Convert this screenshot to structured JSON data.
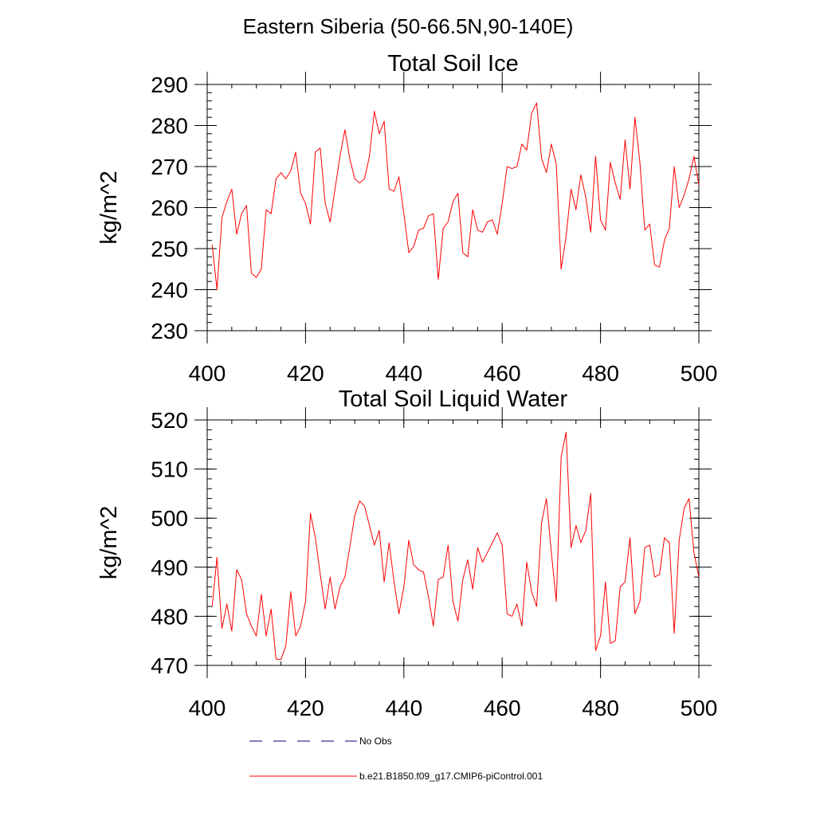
{
  "figure": {
    "suptitle": "Eastern Siberia (50-66.5N,90-140E)"
  },
  "chart_data": [
    {
      "type": "line",
      "title": "Total Soil Ice",
      "xlabel": "",
      "ylabel": "kg/m^2",
      "xlim": [
        400,
        500
      ],
      "ylim": [
        230,
        290
      ],
      "xticks": [
        400,
        420,
        440,
        460,
        480,
        500
      ],
      "yticks": [
        230,
        240,
        250,
        260,
        270,
        280,
        290
      ],
      "grid": false,
      "series": [
        {
          "name": "b.e21.B1850.f09_g17.CMIP6-piControl.001",
          "color": "#ff0000",
          "x": [
            401,
            402,
            403,
            404,
            405,
            406,
            407,
            408,
            409,
            410,
            411,
            412,
            413,
            414,
            415,
            416,
            417,
            418,
            419,
            420,
            421,
            422,
            423,
            424,
            425,
            426,
            427,
            428,
            429,
            430,
            431,
            432,
            433,
            434,
            435,
            436,
            437,
            438,
            439,
            440,
            441,
            442,
            443,
            444,
            445,
            446,
            447,
            448,
            449,
            450,
            451,
            452,
            453,
            454,
            455,
            456,
            457,
            458,
            459,
            460,
            461,
            462,
            463,
            464,
            465,
            466,
            467,
            468,
            469,
            470,
            471,
            472,
            473,
            474,
            475,
            476,
            477,
            478,
            479,
            480,
            481,
            482,
            483,
            484,
            485,
            486,
            487,
            488,
            489,
            490,
            491,
            492,
            493,
            494,
            495,
            496,
            497,
            498,
            499,
            500
          ],
          "y": [
            251,
            240,
            257.5,
            261.5,
            264.5,
            253.5,
            258.5,
            260.5,
            244,
            243,
            245,
            259.5,
            258.5,
            267,
            268.5,
            267,
            269,
            273.5,
            263.5,
            261,
            256,
            273.5,
            274.5,
            261,
            256.5,
            264.5,
            272.5,
            279,
            272,
            267,
            266,
            267,
            272.5,
            283.5,
            278,
            281,
            264.5,
            264,
            267.5,
            258.5,
            249,
            250.5,
            254.5,
            255,
            258,
            258.5,
            242.5,
            255,
            256.5,
            261.5,
            263.5,
            249,
            248,
            259.5,
            254.5,
            254,
            256.5,
            257,
            253.5,
            261,
            270,
            269.5,
            270,
            275.5,
            274,
            283,
            285.5,
            272,
            268.5,
            275.5,
            270.5,
            245,
            253,
            264.5,
            259.5,
            268,
            262.5,
            254,
            272.5,
            257,
            254.5,
            271,
            266,
            262,
            276.5,
            264.5,
            282,
            271,
            254.5,
            256,
            246,
            245.5,
            252,
            255,
            270,
            260,
            263,
            267,
            272.5,
            265.5
          ]
        },
        {
          "name": "No Obs",
          "color": "#000080",
          "x": [],
          "y": []
        }
      ]
    },
    {
      "type": "line",
      "title": "Total Soil Liquid Water",
      "xlabel": "",
      "ylabel": "kg/m^2",
      "xlim": [
        400,
        500
      ],
      "ylim": [
        470,
        520
      ],
      "xticks": [
        400,
        420,
        440,
        460,
        480,
        500
      ],
      "yticks": [
        470,
        480,
        490,
        500,
        510,
        520
      ],
      "grid": false,
      "series": [
        {
          "name": "b.e21.B1850.f09_g17.CMIP6-piControl.001",
          "color": "#ff0000",
          "x": [
            401,
            402,
            403,
            404,
            405,
            406,
            407,
            408,
            409,
            410,
            411,
            412,
            413,
            414,
            415,
            416,
            417,
            418,
            419,
            420,
            421,
            422,
            423,
            424,
            425,
            426,
            427,
            428,
            429,
            430,
            431,
            432,
            433,
            434,
            435,
            436,
            437,
            438,
            439,
            440,
            441,
            442,
            443,
            444,
            445,
            446,
            447,
            448,
            449,
            450,
            451,
            452,
            453,
            454,
            455,
            456,
            457,
            458,
            459,
            460,
            461,
            462,
            463,
            464,
            465,
            466,
            467,
            468,
            469,
            470,
            471,
            472,
            473,
            474,
            475,
            476,
            477,
            478,
            479,
            480,
            481,
            482,
            483,
            484,
            485,
            486,
            487,
            488,
            489,
            490,
            491,
            492,
            493,
            494,
            495,
            496,
            497,
            498,
            499,
            500
          ],
          "y": [
            482,
            492,
            477.5,
            482.5,
            477,
            489.5,
            487.5,
            480.5,
            478,
            476,
            484.5,
            476,
            481.5,
            471.3,
            471.2,
            474,
            485,
            476,
            478,
            483,
            501,
            496,
            488.5,
            481.5,
            488,
            481.5,
            486,
            488,
            494,
            500.5,
            503.5,
            502.5,
            498.5,
            494.5,
            497.5,
            487,
            495,
            487,
            480.5,
            486,
            495.5,
            490.5,
            489.5,
            489,
            484,
            478,
            487.5,
            488,
            494.5,
            483,
            479,
            487.5,
            491.5,
            485.5,
            494,
            491,
            493,
            495,
            497,
            494.5,
            480.5,
            480,
            482.5,
            478,
            491,
            485,
            482,
            499,
            504,
            493,
            483,
            512.5,
            517.5,
            494,
            498.5,
            495,
            497.5,
            505,
            473,
            476,
            487,
            474.5,
            475,
            486,
            487,
            496,
            480.5,
            483,
            494,
            494.5,
            488,
            488.5,
            496,
            495,
            476.5,
            495.5,
            502,
            504,
            493,
            488
          ]
        },
        {
          "name": "No Obs",
          "color": "#000080",
          "x": [],
          "y": []
        }
      ]
    }
  ],
  "legend": {
    "items": [
      {
        "label": "No Obs",
        "color": "#000080",
        "dash": "dashed"
      },
      {
        "label": "b.e21.B1850.f09_g17.CMIP6-piControl.001",
        "color": "#ff0000",
        "dash": "solid"
      }
    ]
  }
}
